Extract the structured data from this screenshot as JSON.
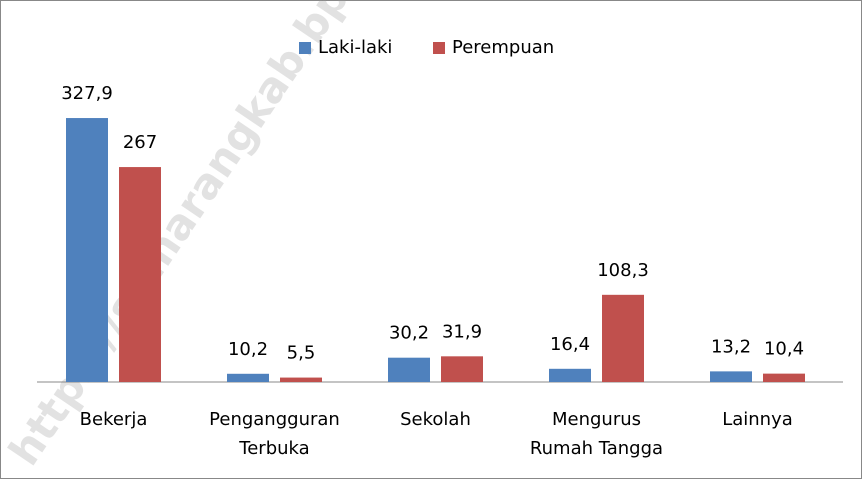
{
  "chart_data": {
    "type": "bar",
    "watermark": "https://semarangkab.bps.go.id",
    "categories": [
      [
        "Bekerja"
      ],
      [
        "Pengangguran",
        "Terbuka"
      ],
      [
        "Sekolah"
      ],
      [
        "Mengurus",
        "Rumah Tangga"
      ],
      [
        "Lainnya"
      ]
    ],
    "series": [
      {
        "name": "Laki-laki",
        "color": "#4f81bd",
        "values": [
          327.9,
          10.2,
          30.2,
          16.4,
          13.2
        ],
        "value_labels": [
          "327,9",
          "10,2",
          "30,2",
          "16,4",
          "13,2"
        ]
      },
      {
        "name": "Perempuan",
        "color": "#c0504d",
        "values": [
          267,
          5.5,
          31.9,
          108.3,
          10.4
        ],
        "value_labels": [
          "267",
          "5,5",
          "31,9",
          "108,3",
          "10,4"
        ]
      }
    ],
    "ylim": [
      0,
      400
    ],
    "legend": "top"
  }
}
